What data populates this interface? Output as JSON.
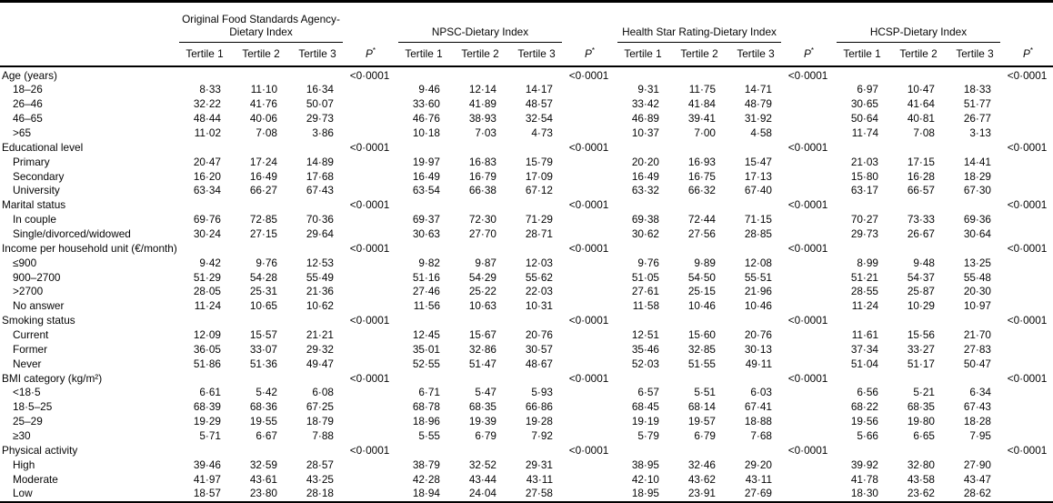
{
  "colors": {
    "background": "#ffffff",
    "text": "#000000",
    "rule": "#000000"
  },
  "table": {
    "tertile_labels": [
      "Tertile 1",
      "Tertile 2",
      "Tertile 3"
    ],
    "p_header": {
      "label": "P",
      "sup": "*"
    },
    "groups": [
      {
        "title": "Original Food Standards Agency-Dietary Index"
      },
      {
        "title": "NPSC-Dietary Index"
      },
      {
        "title": "Health Star Rating-Dietary Index"
      },
      {
        "title": "HCSP-Dietary Index"
      }
    ],
    "sections": [
      {
        "label": "Age (years)",
        "p": [
          "<0·0001",
          "<0·0001",
          "<0·0001",
          "<0·0001"
        ],
        "rows": [
          {
            "label": "18–26",
            "values": [
              [
                "8·33",
                "11·10",
                "16·34"
              ],
              [
                "9·46",
                "12·14",
                "14·17"
              ],
              [
                "9·31",
                "11·75",
                "14·71"
              ],
              [
                "6·97",
                "10·47",
                "18·33"
              ]
            ]
          },
          {
            "label": "26–46",
            "values": [
              [
                "32·22",
                "41·76",
                "50·07"
              ],
              [
                "33·60",
                "41·89",
                "48·57"
              ],
              [
                "33·42",
                "41·84",
                "48·79"
              ],
              [
                "30·65",
                "41·64",
                "51·77"
              ]
            ]
          },
          {
            "label": "46–65",
            "values": [
              [
                "48·44",
                "40·06",
                "29·73"
              ],
              [
                "46·76",
                "38·93",
                "32·54"
              ],
              [
                "46·89",
                "39·41",
                "31·92"
              ],
              [
                "50·64",
                "40·81",
                "26·77"
              ]
            ]
          },
          {
            "label": ">65",
            "values": [
              [
                "11·02",
                "7·08",
                "3·86"
              ],
              [
                "10·18",
                "7·03",
                "4·73"
              ],
              [
                "10·37",
                "7·00",
                "4·58"
              ],
              [
                "11·74",
                "7·08",
                "3·13"
              ]
            ]
          }
        ]
      },
      {
        "label": "Educational level",
        "p": [
          "<0·0001",
          "<0·0001",
          "<0·0001",
          "<0·0001"
        ],
        "rows": [
          {
            "label": "Primary",
            "values": [
              [
                "20·47",
                "17·24",
                "14·89"
              ],
              [
                "19·97",
                "16·83",
                "15·79"
              ],
              [
                "20·20",
                "16·93",
                "15·47"
              ],
              [
                "21·03",
                "17·15",
                "14·41"
              ]
            ]
          },
          {
            "label": "Secondary",
            "values": [
              [
                "16·20",
                "16·49",
                "17·68"
              ],
              [
                "16·49",
                "16·79",
                "17·09"
              ],
              [
                "16·49",
                "16·75",
                "17·13"
              ],
              [
                "15·80",
                "16·28",
                "18·29"
              ]
            ]
          },
          {
            "label": "University",
            "values": [
              [
                "63·34",
                "66·27",
                "67·43"
              ],
              [
                "63·54",
                "66·38",
                "67·12"
              ],
              [
                "63·32",
                "66·32",
                "67·40"
              ],
              [
                "63·17",
                "66·57",
                "67·30"
              ]
            ]
          }
        ]
      },
      {
        "label": "Marital status",
        "p": [
          "<0·0001",
          "<0·0001",
          "<0·0001",
          "<0·0001"
        ],
        "rows": [
          {
            "label": "In couple",
            "values": [
              [
                "69·76",
                "72·85",
                "70·36"
              ],
              [
                "69·37",
                "72·30",
                "71·29"
              ],
              [
                "69·38",
                "72·44",
                "71·15"
              ],
              [
                "70·27",
                "73·33",
                "69·36"
              ]
            ]
          },
          {
            "label": "Single/divorced/widowed",
            "values": [
              [
                "30·24",
                "27·15",
                "29·64"
              ],
              [
                "30·63",
                "27·70",
                "28·71"
              ],
              [
                "30·62",
                "27·56",
                "28·85"
              ],
              [
                "29·73",
                "26·67",
                "30·64"
              ]
            ]
          }
        ]
      },
      {
        "label": "Income per household unit (€/month)",
        "p": [
          "<0·0001",
          "<0·0001",
          "<0·0001",
          "<0·0001"
        ],
        "rows": [
          {
            "label": "≤900",
            "values": [
              [
                "9·42",
                "9·76",
                "12·53"
              ],
              [
                "9·82",
                "9·87",
                "12·03"
              ],
              [
                "9·76",
                "9·89",
                "12·08"
              ],
              [
                "8·99",
                "9·48",
                "13·25"
              ]
            ]
          },
          {
            "label": "900–2700",
            "values": [
              [
                "51·29",
                "54·28",
                "55·49"
              ],
              [
                "51·16",
                "54·29",
                "55·62"
              ],
              [
                "51·05",
                "54·50",
                "55·51"
              ],
              [
                "51·21",
                "54·37",
                "55·48"
              ]
            ]
          },
          {
            "label": ">2700",
            "values": [
              [
                "28·05",
                "25·31",
                "21·36"
              ],
              [
                "27·46",
                "25·22",
                "22·03"
              ],
              [
                "27·61",
                "25·15",
                "21·96"
              ],
              [
                "28·55",
                "25·87",
                "20·30"
              ]
            ]
          },
          {
            "label": "No answer",
            "values": [
              [
                "11·24",
                "10·65",
                "10·62"
              ],
              [
                "11·56",
                "10·63",
                "10·31"
              ],
              [
                "11·58",
                "10·46",
                "10·46"
              ],
              [
                "11·24",
                "10·29",
                "10·97"
              ]
            ]
          }
        ]
      },
      {
        "label": "Smoking status",
        "p": [
          "<0·0001",
          "<0·0001",
          "<0·0001",
          "<0·0001"
        ],
        "rows": [
          {
            "label": "Current",
            "values": [
              [
                "12·09",
                "15·57",
                "21·21"
              ],
              [
                "12·45",
                "15·67",
                "20·76"
              ],
              [
                "12·51",
                "15·60",
                "20·76"
              ],
              [
                "11·61",
                "15·56",
                "21·70"
              ]
            ]
          },
          {
            "label": "Former",
            "values": [
              [
                "36·05",
                "33·07",
                "29·32"
              ],
              [
                "35·01",
                "32·86",
                "30·57"
              ],
              [
                "35·46",
                "32·85",
                "30·13"
              ],
              [
                "37·34",
                "33·27",
                "27·83"
              ]
            ]
          },
          {
            "label": "Never",
            "values": [
              [
                "51·86",
                "51·36",
                "49·47"
              ],
              [
                "52·55",
                "51·47",
                "48·67"
              ],
              [
                "52·03",
                "51·55",
                "49·11"
              ],
              [
                "51·04",
                "51·17",
                "50·47"
              ]
            ]
          }
        ]
      },
      {
        "label": "BMI category (kg/m²)",
        "p": [
          "<0·0001",
          "<0·0001",
          "<0·0001",
          "<0·0001"
        ],
        "rows": [
          {
            "label": "<18·5",
            "values": [
              [
                "6·61",
                "5·42",
                "6·08"
              ],
              [
                "6·71",
                "5·47",
                "5·93"
              ],
              [
                "6·57",
                "5·51",
                "6·03"
              ],
              [
                "6·56",
                "5·21",
                "6·34"
              ]
            ]
          },
          {
            "label": "18·5–25",
            "values": [
              [
                "68·39",
                "68·36",
                "67·25"
              ],
              [
                "68·78",
                "68·35",
                "66·86"
              ],
              [
                "68·45",
                "68·14",
                "67·41"
              ],
              [
                "68·22",
                "68·35",
                "67·43"
              ]
            ]
          },
          {
            "label": "25–29",
            "values": [
              [
                "19·29",
                "19·55",
                "18·79"
              ],
              [
                "18·96",
                "19·39",
                "19·28"
              ],
              [
                "19·19",
                "19·57",
                "18·88"
              ],
              [
                "19·56",
                "19·80",
                "18·28"
              ]
            ]
          },
          {
            "label": "≥30",
            "values": [
              [
                "5·71",
                "6·67",
                "7·88"
              ],
              [
                "5·55",
                "6·79",
                "7·92"
              ],
              [
                "5·79",
                "6·79",
                "7·68"
              ],
              [
                "5·66",
                "6·65",
                "7·95"
              ]
            ]
          }
        ]
      },
      {
        "label": "Physical activity",
        "p": [
          "<0·0001",
          "<0·0001",
          "<0·0001",
          "<0·0001"
        ],
        "rows": [
          {
            "label": "High",
            "values": [
              [
                "39·46",
                "32·59",
                "28·57"
              ],
              [
                "38·79",
                "32·52",
                "29·31"
              ],
              [
                "38·95",
                "32·46",
                "29·20"
              ],
              [
                "39·92",
                "32·80",
                "27·90"
              ]
            ]
          },
          {
            "label": "Moderate",
            "values": [
              [
                "41·97",
                "43·61",
                "43·25"
              ],
              [
                "42·28",
                "43·44",
                "43·11"
              ],
              [
                "42·10",
                "43·62",
                "43·11"
              ],
              [
                "41·78",
                "43·58",
                "43·47"
              ]
            ]
          },
          {
            "label": "Low",
            "values": [
              [
                "18·57",
                "23·80",
                "28·18"
              ],
              [
                "18·94",
                "24·04",
                "27·58"
              ],
              [
                "18·95",
                "23·91",
                "27·69"
              ],
              [
                "18·30",
                "23·62",
                "28·62"
              ]
            ]
          }
        ]
      }
    ]
  }
}
